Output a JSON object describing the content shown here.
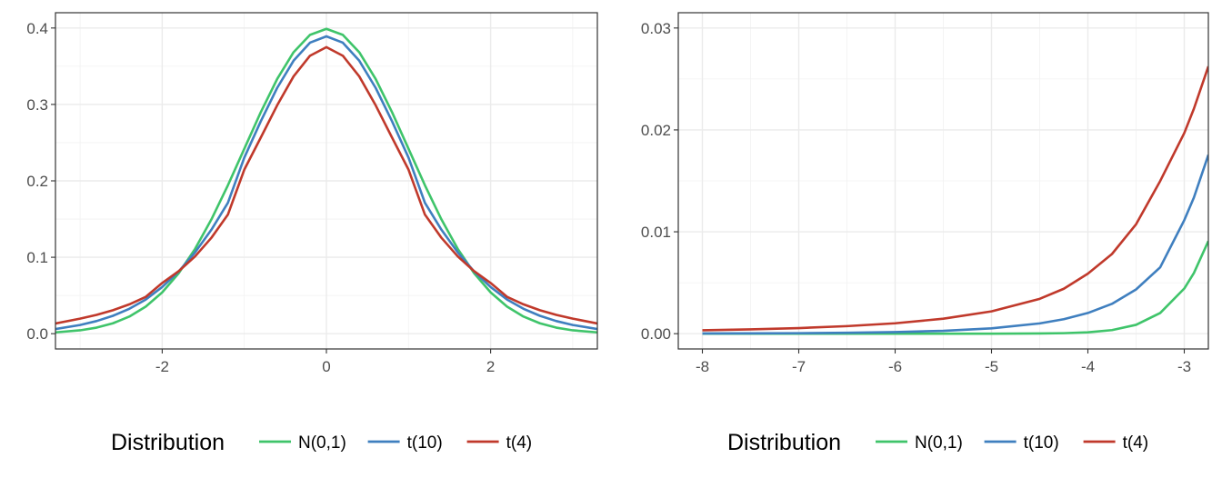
{
  "series_colors": {
    "N(0,1)": "#3fc46a",
    "t(10)": "#3f7fbf",
    "t(4)": "#c0392b"
  },
  "chart_data": [
    {
      "type": "line",
      "title": "",
      "xlabel": "",
      "ylabel": "",
      "xlim": [
        -3.3,
        3.3
      ],
      "ylim": [
        -0.02,
        0.42
      ],
      "x_ticks": [
        -2,
        0,
        2
      ],
      "x_tick_labels": [
        "-2",
        "0",
        "2"
      ],
      "y_ticks": [
        0.0,
        0.1,
        0.2,
        0.3,
        0.4
      ],
      "y_tick_labels": [
        "0.0",
        "0.1",
        "0.2",
        "0.3",
        "0.4"
      ],
      "grid": true,
      "legend": {
        "title": "Distribution",
        "position": "bottom",
        "labels": [
          "N(0,1)",
          "t(10)",
          "t(4)"
        ]
      },
      "series": [
        {
          "key": "N(0,1)",
          "x": [
            -3.3,
            -3.0,
            -2.8,
            -2.6,
            -2.4,
            -2.2,
            -2.0,
            -1.8,
            -1.6,
            -1.4,
            -1.2,
            -1.0,
            -0.8,
            -0.6,
            -0.4,
            -0.2,
            0.0,
            0.2,
            0.4,
            0.6,
            0.8,
            1.0,
            1.2,
            1.4,
            1.6,
            1.8,
            2.0,
            2.2,
            2.4,
            2.6,
            2.8,
            3.0,
            3.3
          ],
          "values": [
            0.0017,
            0.0044,
            0.0079,
            0.0136,
            0.0224,
            0.0355,
            0.054,
            0.079,
            0.1109,
            0.1497,
            0.1942,
            0.242,
            0.2897,
            0.3332,
            0.3683,
            0.391,
            0.3989,
            0.391,
            0.3683,
            0.3332,
            0.2897,
            0.242,
            0.1942,
            0.1497,
            0.1109,
            0.079,
            0.054,
            0.0355,
            0.0224,
            0.0136,
            0.0079,
            0.0044,
            0.0017
          ]
        },
        {
          "key": "t(10)",
          "x": [
            -3.3,
            -3.0,
            -2.8,
            -2.6,
            -2.4,
            -2.2,
            -2.0,
            -1.8,
            -1.6,
            -1.4,
            -1.2,
            -1.0,
            -0.8,
            -0.6,
            -0.4,
            -0.2,
            0.0,
            0.2,
            0.4,
            0.6,
            0.8,
            1.0,
            1.2,
            1.4,
            1.6,
            1.8,
            2.0,
            2.2,
            2.4,
            2.6,
            2.8,
            3.0,
            3.3
          ],
          "values": [
            0.0061,
            0.0114,
            0.0165,
            0.0234,
            0.0326,
            0.0447,
            0.0611,
            0.0813,
            0.1063,
            0.1362,
            0.1712,
            0.2304,
            0.2778,
            0.3216,
            0.3572,
            0.3808,
            0.3891,
            0.3808,
            0.3572,
            0.3216,
            0.2778,
            0.2304,
            0.1712,
            0.1362,
            0.1063,
            0.0813,
            0.0611,
            0.0447,
            0.0326,
            0.0234,
            0.0165,
            0.0114,
            0.0061
          ]
        },
        {
          "key": "t(4)",
          "x": [
            -3.3,
            -3.0,
            -2.8,
            -2.6,
            -2.4,
            -2.2,
            -2.0,
            -1.8,
            -1.6,
            -1.4,
            -1.2,
            -1.0,
            -0.8,
            -0.6,
            -0.4,
            -0.2,
            0.0,
            0.2,
            0.4,
            0.6,
            0.8,
            1.0,
            1.2,
            1.4,
            1.6,
            1.8,
            2.0,
            2.2,
            2.4,
            2.6,
            2.8,
            3.0,
            3.3
          ],
          "values": [
            0.0133,
            0.0197,
            0.0246,
            0.0307,
            0.0384,
            0.0482,
            0.0663,
            0.0817,
            0.1011,
            0.1256,
            0.1558,
            0.2147,
            0.2565,
            0.2988,
            0.3367,
            0.3637,
            0.375,
            0.3637,
            0.3367,
            0.2988,
            0.2565,
            0.2147,
            0.1558,
            0.1256,
            0.1011,
            0.0817,
            0.0663,
            0.0482,
            0.0384,
            0.0307,
            0.0246,
            0.0197,
            0.0133
          ]
        }
      ]
    },
    {
      "type": "line",
      "title": "",
      "xlabel": "",
      "ylabel": "",
      "xlim": [
        -8.25,
        -2.75
      ],
      "ylim": [
        -0.0015,
        0.0315
      ],
      "x_ticks": [
        -8,
        -7,
        -6,
        -5,
        -4,
        -3
      ],
      "x_tick_labels": [
        "-8",
        "-7",
        "-6",
        "-5",
        "-4",
        "-3"
      ],
      "y_ticks": [
        0.0,
        0.01,
        0.02,
        0.03
      ],
      "y_tick_labels": [
        "0.00",
        "0.01",
        "0.02",
        "0.03"
      ],
      "grid": true,
      "legend": {
        "title": "Distribution",
        "position": "bottom",
        "labels": [
          "N(0,1)",
          "t(10)",
          "t(4)"
        ]
      },
      "series": [
        {
          "key": "N(0,1)",
          "x": [
            -8.0,
            -7.5,
            -7.0,
            -6.5,
            -6.0,
            -5.5,
            -5.0,
            -4.5,
            -4.25,
            -4.0,
            -3.75,
            -3.5,
            -3.25,
            -3.0,
            -2.9,
            -2.75
          ],
          "values": [
            0.0,
            0.0,
            0.0,
            0.0,
            0.0,
            0.0,
            0.0,
            2e-05,
            5e-05,
            0.00013,
            0.00035,
            0.00087,
            0.00203,
            0.00443,
            0.00595,
            0.00909
          ]
        },
        {
          "key": "t(10)",
          "x": [
            -8.0,
            -7.5,
            -7.0,
            -6.5,
            -6.0,
            -5.5,
            -5.0,
            -4.5,
            -4.25,
            -4.0,
            -3.75,
            -3.5,
            -3.25,
            -3.0,
            -2.9,
            -2.75
          ],
          "values": [
            2e-05,
            3e-05,
            5e-05,
            9e-05,
            0.00016,
            0.00028,
            0.00052,
            0.00101,
            0.00142,
            0.00203,
            0.00293,
            0.00434,
            0.00651,
            0.01114,
            0.01336,
            0.01755
          ]
        },
        {
          "key": "t(4)",
          "x": [
            -8.0,
            -7.5,
            -7.0,
            -6.5,
            -6.0,
            -5.5,
            -5.0,
            -4.5,
            -4.25,
            -4.0,
            -3.75,
            -3.5,
            -3.25,
            -3.0,
            -2.9,
            -2.75
          ],
          "values": [
            0.00033,
            0.00042,
            0.00055,
            0.00074,
            0.00102,
            0.00147,
            0.00219,
            0.00342,
            0.00441,
            0.00589,
            0.00782,
            0.01074,
            0.01498,
            0.01969,
            0.02208,
            0.02623
          ]
        }
      ]
    }
  ]
}
